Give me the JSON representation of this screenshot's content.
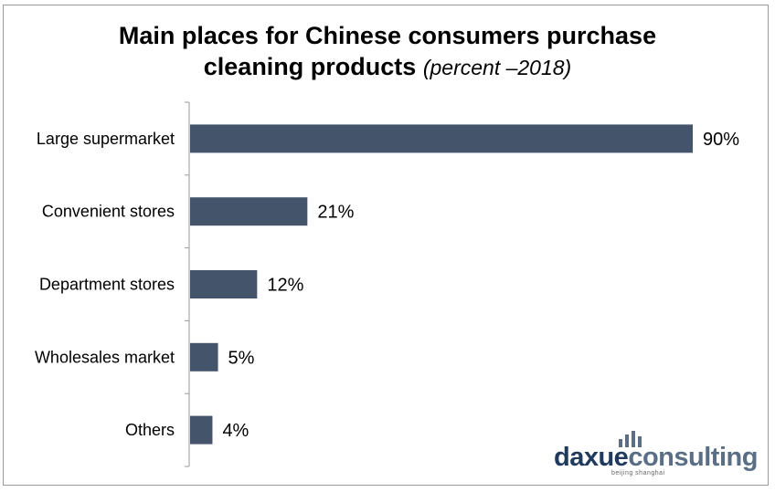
{
  "chart_data": {
    "type": "bar",
    "orientation": "horizontal",
    "title_main": "Main places for Chinese consumers purchase",
    "title_line2_bold": "cleaning products",
    "title_line2_italic": "(percent –2018)",
    "categories": [
      "Large supermarket",
      "Convenient stores",
      "Department stores",
      "Wholesales market",
      "Others"
    ],
    "values": [
      90,
      21,
      12,
      5,
      4
    ],
    "value_labels": [
      "90%",
      "21%",
      "12%",
      "5%",
      "4%"
    ],
    "xlim": [
      0,
      90
    ],
    "grid": false,
    "bar_color": "#44546a"
  },
  "logo": {
    "part1": "daxue",
    "part2": "consulting",
    "tagline": "beijing shanghai",
    "color_primary": "#1f3a5c",
    "color_secondary": "#5a6f86"
  }
}
